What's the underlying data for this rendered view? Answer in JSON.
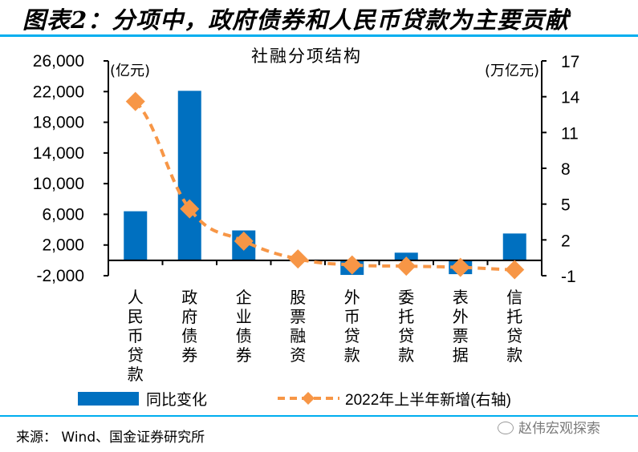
{
  "figure": {
    "title": "图表2：分项中，政府债券和人民币贷款为主要贡献",
    "source": "来源： Wind、国金证券研究所",
    "watermark": "赵伟宏观探索"
  },
  "colors": {
    "bar": "#0070c0",
    "line": "#f79646",
    "rule": "#00aeef",
    "axis": "#000000"
  },
  "chart_data": {
    "type": "bar",
    "title": "社融分项结构",
    "categories": [
      "人民币贷款",
      "政府债券",
      "企业债券",
      "股票融资",
      "外币贷款",
      "委托贷款",
      "表外票据",
      "信托贷款"
    ],
    "series": [
      {
        "name": "同比变化",
        "type": "bar",
        "axis": "left",
        "values": [
          6400,
          22100,
          3900,
          -100,
          -1900,
          1000,
          -1800,
          3500
        ]
      },
      {
        "name": "2022年上半年新增(右轴)",
        "type": "line",
        "style": "dashed-diamond",
        "axis": "right",
        "values": [
          13.6,
          4.6,
          1.9,
          0.4,
          -0.1,
          -0.2,
          -0.3,
          -0.5
        ]
      }
    ],
    "left_axis": {
      "unit_label": "(亿元)",
      "ylim": [
        -2000,
        26000
      ],
      "ticks": [
        -2000,
        2000,
        6000,
        10000,
        14000,
        18000,
        22000,
        26000
      ],
      "tick_labels": [
        "-2,000",
        "2,000",
        "6,000",
        "10,000",
        "14,000",
        "18,000",
        "22,000",
        "26,000"
      ]
    },
    "right_axis": {
      "unit_label": "(万亿元)",
      "ylim": [
        -1,
        17
      ],
      "ticks": [
        -1,
        2,
        5,
        8,
        11,
        14,
        17
      ],
      "tick_labels": [
        "-1",
        "2",
        "5",
        "8",
        "11",
        "14",
        "17"
      ]
    },
    "grid": false,
    "legend": {
      "placement": "bottom",
      "entries": [
        "同比变化",
        "2022年上半年新增(右轴)"
      ]
    }
  }
}
